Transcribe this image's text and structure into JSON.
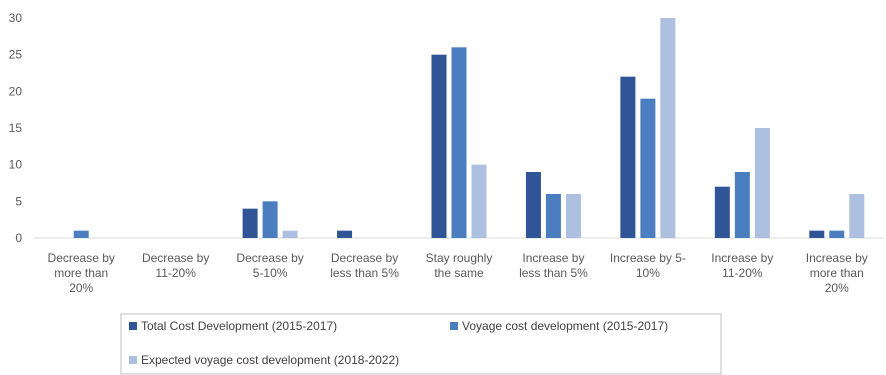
{
  "chart_data": {
    "type": "bar",
    "title": "",
    "xlabel": "",
    "ylabel": "",
    "ylim": [
      0,
      30
    ],
    "yticks": [
      0,
      5,
      10,
      15,
      20,
      25,
      30
    ],
    "grid": false,
    "legend_position": "bottom",
    "categories": [
      [
        "Decrease by",
        "more than",
        "20%"
      ],
      [
        "Decrease by",
        "11-20%"
      ],
      [
        "Decrease by",
        "5-10%"
      ],
      [
        "Decrease by",
        "less than 5%"
      ],
      [
        "Stay roughly",
        "the same"
      ],
      [
        "Increase by",
        "less than 5%"
      ],
      [
        "Increase by 5-",
        "10%"
      ],
      [
        "Increase by",
        "11-20%"
      ],
      [
        "Increase by",
        "more than",
        "20%"
      ]
    ],
    "series": [
      {
        "name": "Total Cost Development (2015-2017)",
        "color": "#2f5597",
        "values": [
          0,
          0,
          4,
          1,
          25,
          9,
          22,
          7,
          1
        ]
      },
      {
        "name": "Voyage cost development (2015-2017)",
        "color": "#4a7ebf",
        "values": [
          1,
          0,
          5,
          0,
          26,
          6,
          19,
          9,
          1
        ]
      },
      {
        "name": "Expected voyage cost development (2018-2022)",
        "color": "#adc0e0",
        "values": [
          0,
          0,
          1,
          0,
          10,
          6,
          30,
          15,
          6
        ]
      }
    ]
  }
}
